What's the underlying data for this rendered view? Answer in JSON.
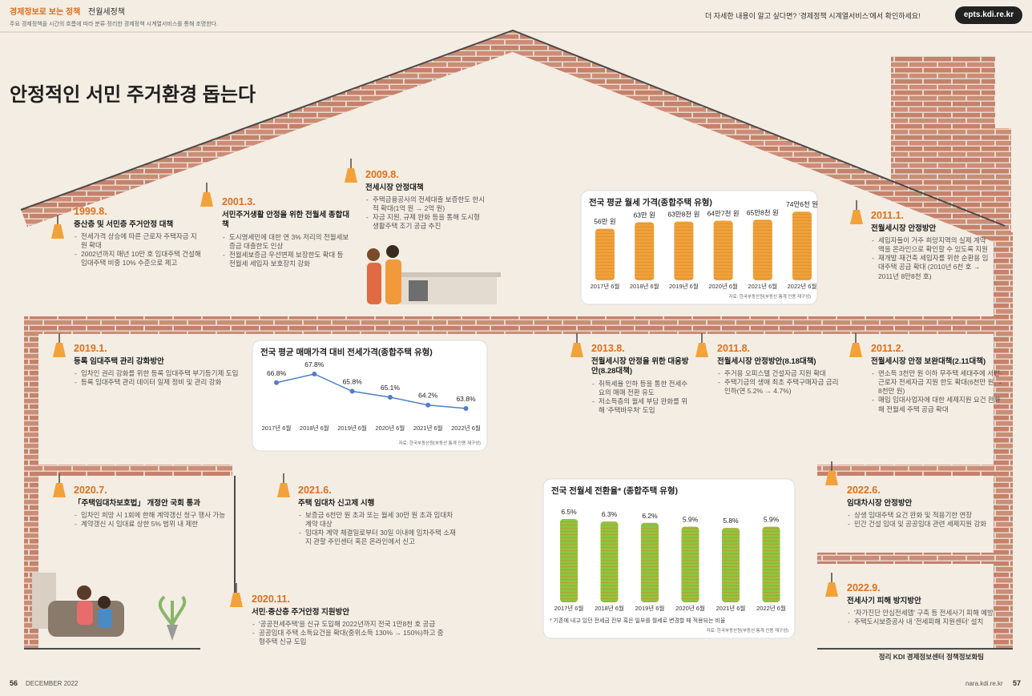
{
  "header": {
    "section": "경제정보로 보는 정책",
    "topic": "전월세정책",
    "desc": "주요 경제정책을 시간의 흐름에 따라 분류·정리한 경제정책 시계열서비스를 통해 조명한다.",
    "notice": "더 자세한 내용이 알고 싶다면? '경제정책 시계열서비스'에서 확인하세요!",
    "site": "epts.kdi.re.kr"
  },
  "title": "안정적인 서민 주거환경 돕는다",
  "events": [
    {
      "date": "1999.8.",
      "title": "중산층 및 서민층 주거안정 대책",
      "items": [
        "전세가격 상승에 따른 근로자 주택자금 지원 확대",
        "2002년까지 매년 10만 호 임대주택 건설해 임대주택 비중 10% 수준으로 제고"
      ]
    },
    {
      "date": "2001.3.",
      "title": "서민주거생활 안정을 위한 전월세 종합대책",
      "items": [
        "도시영세민에 대한 연 3% 저리의 전월세보증금 대출한도 인상",
        "전월세보증금 우선변제 보장한도 확대 등 전월세 세입자 보호장치 강화"
      ]
    },
    {
      "date": "2009.8.",
      "title": "전세시장 안정대책",
      "items": [
        "주택금융공사의 전세대출 보증한도 한시적 확대(1억 원 → 2억 원)",
        "자금 지원, 규제 완화 등을 통해 도시형 생활주택 조기 공급 추진"
      ]
    },
    {
      "date": "2011.1.",
      "title": "전월세시장 안정방안",
      "items": [
        "세입자들이 거주 희망지역의 실제 계약액을 온라인으로 확인할 수 있도록 지원",
        "재개발·재건축 세입자를 위한 순환용 임대주택 공급 확대 (2010년 6천 호 → 2011년 8만8천 호)"
      ]
    },
    {
      "date": "2019.1.",
      "title": "등록 임대주택 관리 강화방안",
      "items": [
        "임차인 권리 강화를 위한 등록 임대주택 부기등기제 도입",
        "등록 임대주택 관리 데이터 일제 정비 및 관리 강화"
      ]
    },
    {
      "date": "2013.8.",
      "title": "전월세시장 안정을 위한 대응방안(8.28대책)",
      "items": [
        "취득세율 인하 등을 통한 전세수요의 매매 전환 유도",
        "저소득층의 월세 부담 완화를 위해 '주택바우처' 도입"
      ]
    },
    {
      "date": "2011.8.",
      "title": "전월세시장 안정방안(8.18대책)",
      "items": [
        "주거용 오피스텔 건설자금 지원 확대",
        "주택기금의 생애 최초 주택구매자금 금리 인하(연 5.2% → 4.7%)"
      ]
    },
    {
      "date": "2011.2.",
      "title": "전월세시장 안정 보완대책(2.11대책)",
      "items": [
        "연소득 3천만 원 이하 무주택 세대주에 서민·근로자 전세자금 지원 한도 확대(6천만 원 → 8천만 원)",
        "매입 임대사업자에 대한 세제지원 요건 완화해 전월세 주택 공급 확대"
      ]
    },
    {
      "date": "2020.7.",
      "title": "「주택임대차보호법」 개정안 국회 통과",
      "items": [
        "임차인 희망 시 1회에 한해 계약갱신 청구 행사 가능",
        "계약갱신 시 임대료 상한 5% 범위 내 제한"
      ]
    },
    {
      "date": "2021.6.",
      "title": "주택 임대차 신고제 시행",
      "items": [
        "보증금 6천만 원 초과 또는 월세 30만 원 초과 임대차 계약 대상",
        "임대차 계약 체결일로부터 30일 이내에 임차주택 소재지 관할 주민센터 혹은 온라인에서 신고"
      ]
    },
    {
      "date": "2020.11.",
      "title": "서민·중산층 주거안정 지원방안",
      "items": [
        "'공공전세주택'을 신규 도입해 2022년까지 전국 1만8천 호 공급",
        "공공임대 주택 소득요건을 확대(중위소득 130% → 150%)하고 중형주택 신규 도입"
      ]
    },
    {
      "date": "2022.6.",
      "title": "임대차시장 안정방안",
      "items": [
        "상생 임대주택 요건 완화 및 적용기한 연장",
        "민간 건설 임대 및 공공임대 관련 세제지원 강화"
      ]
    },
    {
      "date": "2022.9.",
      "title": "전세사기 피해 방지방안",
      "items": [
        "'자가진단 안심전세앱' 구축 등 전세사기 피해 예방",
        "주택도시보증공사 내 '전세피해 지원센터' 설치"
      ]
    }
  ],
  "chart_data": [
    {
      "type": "bar",
      "title": "전국 평균 월세 가격(종합주택 유형)",
      "color": "#f0a23a",
      "categories": [
        "2017년 6월",
        "2018년 6월",
        "2019년 6월",
        "2020년 6월",
        "2021년 6월",
        "2022년 6월"
      ],
      "values": [
        56,
        63,
        63.8,
        64.7,
        65.8,
        74.6
      ],
      "value_labels": [
        "56만 원",
        "63만 원",
        "63만8천 원",
        "64만7천 원",
        "65만8천 원",
        "74만6천 원"
      ],
      "source": "자료: 한국부동산원(부동산 통계 인용 재구성)"
    },
    {
      "type": "line",
      "title": "전국 평균 매매가격 대비 전세가격(종합주택 유형)",
      "color": "#4f7fc4",
      "categories": [
        "2017년 6월",
        "2018년 6월",
        "2019년 6월",
        "2020년 6월",
        "2021년 6월",
        "2022년 6월"
      ],
      "values": [
        66.8,
        67.8,
        65.8,
        65.1,
        64.2,
        63.8
      ],
      "value_labels": [
        "66.8%",
        "67.8%",
        "65.8%",
        "65.1%",
        "64.2%",
        "63.8%"
      ],
      "source": "자료: 한국부동산원(부동산 통계 인용 재구성)"
    },
    {
      "type": "bar",
      "title": "전국 전월세 전환율* (종합주택 유형)",
      "color": "#8cc63f",
      "categories": [
        "2017년 6월",
        "2018년 6월",
        "2019년 6월",
        "2020년 6월",
        "2021년 6월",
        "2022년 6월"
      ],
      "values": [
        6.5,
        6.3,
        6.2,
        5.9,
        5.8,
        5.9
      ],
      "value_labels": [
        "6.5%",
        "6.3%",
        "6.2%",
        "5.9%",
        "5.8%",
        "5.9%"
      ],
      "note": "* 기존에 내고 있던 전세금 전부 혹은 일부를 월세로 변경할 때 적용되는 비율",
      "source": "자료: 한국부동산원(부동산 통계 인용 재구성)"
    }
  ],
  "footer": {
    "credit": "정리 KDI 경제정보센터 정책정보화팀",
    "page_left": "56",
    "month": "DECEMBER 2022",
    "url": "nara.kdi.re.kr",
    "page_right": "57"
  }
}
